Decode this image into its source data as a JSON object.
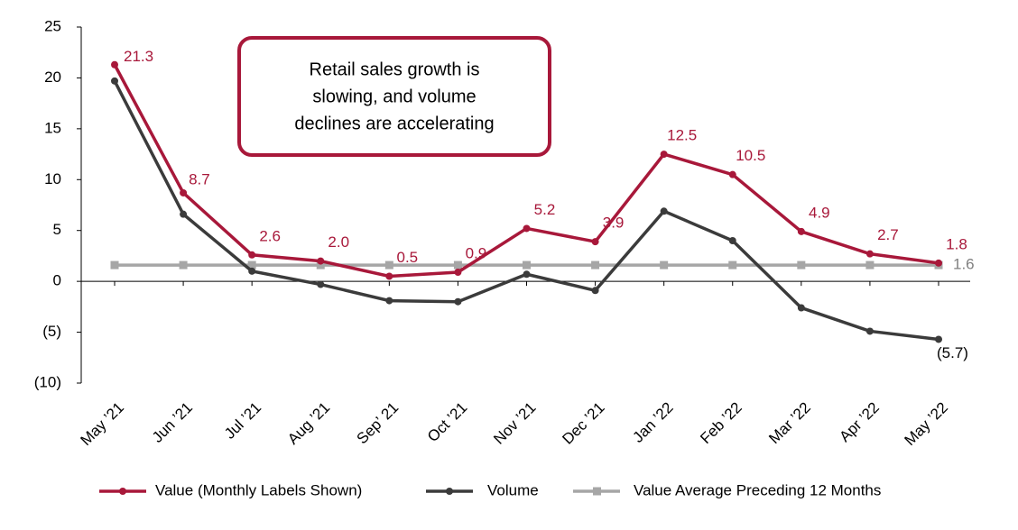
{
  "chart_data": {
    "type": "line",
    "annotation": [
      "Retail sales growth is",
      "slowing, and volume",
      "declines are accelerating"
    ],
    "categories": [
      "May ’21",
      "Jun ’21",
      "Jul ’21",
      "Aug ’21",
      "Sep’ 21",
      "Oct ’21",
      "Nov ’21",
      "Dec ’21",
      "Jan ’22",
      "Feb ’22",
      "Mar ’22",
      "Apr ’22",
      "May ’22"
    ],
    "series": [
      {
        "name": "Value (Monthly Labels Shown)",
        "color": "#a8183a",
        "marker": "circle",
        "values": [
          21.3,
          8.7,
          2.6,
          2.0,
          0.5,
          0.9,
          5.2,
          3.9,
          12.5,
          10.5,
          4.9,
          2.7,
          1.8
        ],
        "value_labels": [
          "21.3",
          "8.7",
          "2.6",
          "2.0",
          "0.5",
          "0.9",
          "5.2",
          "3.9",
          "12.5",
          "10.5",
          "4.9",
          "2.7",
          "1.8"
        ]
      },
      {
        "name": "Volume",
        "color": "#3b3b3b",
        "marker": "circle",
        "values": [
          19.7,
          6.6,
          1.0,
          -0.3,
          -1.9,
          -2.0,
          0.7,
          -0.9,
          6.9,
          4.0,
          -2.6,
          -4.9,
          -5.7
        ],
        "value_labels": [
          null,
          null,
          null,
          null,
          null,
          null,
          null,
          null,
          null,
          null,
          null,
          null,
          "(5.7)"
        ]
      },
      {
        "name": "Value Average Preceding 12 Months",
        "color": "#a6a6a6",
        "marker": "square",
        "values": [
          1.6,
          1.6,
          1.6,
          1.6,
          1.6,
          1.6,
          1.6,
          1.6,
          1.6,
          1.6,
          1.6,
          1.6,
          1.6
        ],
        "value_labels": [
          null,
          null,
          null,
          null,
          null,
          null,
          null,
          null,
          null,
          null,
          null,
          null,
          "1.6"
        ]
      }
    ],
    "ylim": [
      -10,
      25
    ],
    "yticks": [
      {
        "value": -10,
        "label": "(10)"
      },
      {
        "value": -5,
        "label": "(5)"
      },
      0,
      5,
      10,
      15,
      20,
      25
    ]
  }
}
